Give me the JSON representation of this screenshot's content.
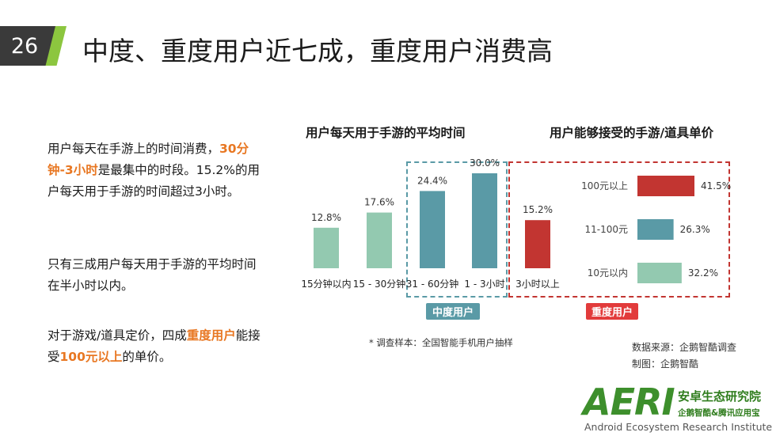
{
  "page_number": "26",
  "title": "中度、重度用户近七成，重度用户消费高",
  "paragraphs": {
    "p1_a": "用户每天在手游上的时间消费，",
    "p1_hl": "30分钟-3小时",
    "p1_b": "是最集中的时段。15.2%的用户每天用于手游的时间超过3小时。",
    "p2": "只有三成用户每天用于手游的平均时间在半小时以内。",
    "p3_a": "对于游戏/道具定价，四成",
    "p3_hl1": "重度用户",
    "p3_b": "能接受",
    "p3_hl2": "100元以上",
    "p3_c": "的单价。"
  },
  "chart_data": [
    {
      "type": "bar",
      "title": "用户每天用于手游的平均时间",
      "categories": [
        "15分钟以内",
        "15 - 30分钟",
        "31 - 60分钟",
        "1 - 3小时",
        "3小时以上"
      ],
      "values": [
        12.8,
        17.6,
        24.4,
        30.0,
        15.2
      ],
      "value_labels": [
        "12.8%",
        "17.6%",
        "24.4%",
        "30.0%",
        "15.2%"
      ],
      "colors": [
        "#93c9b0",
        "#93c9b0",
        "#5a9aa6",
        "#5a9aa6",
        "#c23531"
      ],
      "group_labels": {
        "medium": "中度用户",
        "heavy": "重度用户"
      },
      "ylim": [
        0,
        35
      ]
    },
    {
      "type": "bar",
      "orientation": "horizontal",
      "title": "用户能够接受的手游/道具单价",
      "categories": [
        "100元以上",
        "11-100元",
        "10元以内"
      ],
      "values": [
        41.5,
        26.3,
        32.2
      ],
      "value_labels": [
        "41.5%",
        "26.3%",
        "32.2%"
      ],
      "colors": [
        "#c23531",
        "#5a9aa6",
        "#93c9b0"
      ],
      "xlim": [
        0,
        50
      ]
    }
  ],
  "note": "* 调查样本：全国智能手机用户抽样",
  "source": {
    "data": "数据来源：企鹅智酷调查",
    "made_by": "制图：企鹅智酷"
  },
  "logo": {
    "mark": "AERI",
    "cn": "安卓生态研究院",
    "sub": "企鹅智酷&腾讯应用宝",
    "en": "Android Ecosystem Research Institute"
  },
  "colors": {
    "accent": "#e87722",
    "light_green": "#93c9b0",
    "teal": "#5a9aa6",
    "red": "#c23531",
    "logo_green": "#3d8f2c"
  }
}
